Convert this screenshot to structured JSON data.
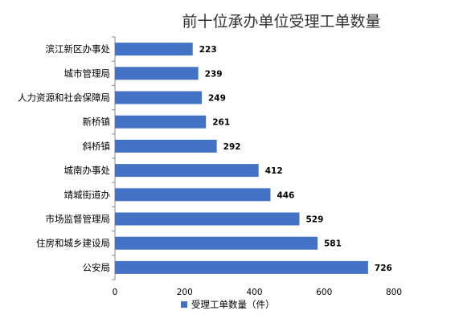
{
  "chart_data": {
    "type": "bar",
    "orientation": "horizontal",
    "title": "前十位承办单位受理工单数量",
    "categories": [
      "滨江新区办事处",
      "城市管理局",
      "人力资源和社会保障局",
      "新桥镇",
      "斜桥镇",
      "城南办事处",
      "靖城街道办",
      "市场监督管理局",
      "住房和城乡建设局",
      "公安局"
    ],
    "series": [
      {
        "name": "受理工单数量（件）",
        "values": [
          223,
          239,
          249,
          261,
          292,
          412,
          446,
          529,
          581,
          726
        ]
      }
    ],
    "xlim": [
      0,
      800
    ],
    "xticks": [
      0,
      200,
      400,
      600,
      800
    ],
    "grid": false,
    "legend": "bottom",
    "bar_color": "#4472C4"
  }
}
